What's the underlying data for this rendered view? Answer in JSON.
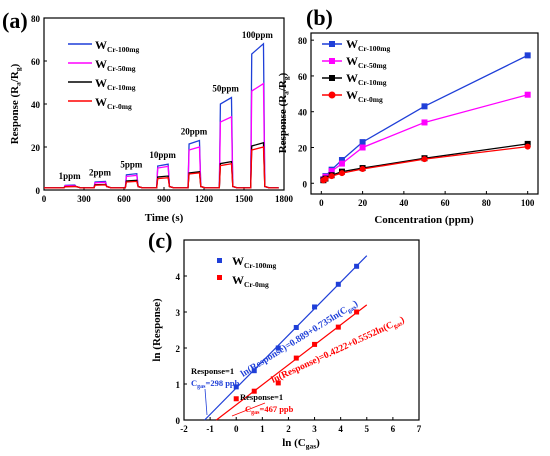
{
  "chart_data": [
    {
      "panel": "(a)",
      "type": "line",
      "xlabel": "Time (s)",
      "ylabel": "Response (R",
      "ylabel_sub1": "a",
      "ylabel_mid": "/R",
      "ylabel_sub2": "g",
      "ylabel_end": ")",
      "xlim": [
        0,
        1800
      ],
      "ylim": [
        0,
        80
      ],
      "xticks": [
        0,
        300,
        600,
        900,
        1200,
        1500,
        1800
      ],
      "yticks": [
        0,
        20,
        40,
        60,
        80
      ],
      "concentrations": [
        "1ppm",
        "2ppm",
        "5ppm",
        "10ppm",
        "20ppm",
        "50ppm",
        "100ppm"
      ],
      "pulses": [
        {
          "on": 150,
          "off": 235
        },
        {
          "on": 375,
          "off": 465
        },
        {
          "on": 610,
          "off": 700
        },
        {
          "on": 845,
          "off": 935
        },
        {
          "on": 1080,
          "off": 1170
        },
        {
          "on": 1315,
          "off": 1410
        },
        {
          "on": 1550,
          "off": 1650
        }
      ],
      "series": [
        {
          "name": "W",
          "sub": "Cr-100mg",
          "color": "#1f3fd8",
          "values": [
            2.3,
            4.0,
            7.6,
            12.0,
            23.0,
            43.0,
            68.0
          ]
        },
        {
          "name": "W",
          "sub": "Cr-50mg",
          "color": "#ff00ff",
          "values": [
            2.1,
            3.6,
            6.8,
            11.0,
            20.0,
            34.0,
            49.5
          ]
        },
        {
          "name": "W",
          "sub": "Cr-10mg",
          "color": "#000000",
          "values": [
            1.7,
            2.6,
            4.5,
            6.5,
            8.5,
            13.2,
            22.0
          ]
        },
        {
          "name": "W",
          "sub": "Cr-0mg",
          "color": "#ff0000",
          "values": [
            1.6,
            2.4,
            4.0,
            5.7,
            8.0,
            12.2,
            20.0
          ]
        }
      ]
    },
    {
      "panel": "(b)",
      "type": "line",
      "xlabel": "Concentration (ppm)",
      "ylabel": "Response (R",
      "ylabel_sub1": "a",
      "ylabel_mid": "/R",
      "ylabel_sub2": "g",
      "ylabel_end": ")",
      "xlim": [
        -5,
        105
      ],
      "ylim": [
        -6,
        84
      ],
      "xticks": [
        0,
        20,
        40,
        60,
        80,
        100
      ],
      "yticks": [
        0,
        20,
        40,
        60,
        80
      ],
      "x": [
        1,
        2,
        5,
        10,
        20,
        50,
        100
      ],
      "series": [
        {
          "name": "W",
          "sub": "Cr-100mg",
          "color": "#1f3fd8",
          "marker": "square",
          "values": [
            2.3,
            4.0,
            7.6,
            13.0,
            23.0,
            43.0,
            71.5
          ]
        },
        {
          "name": "W",
          "sub": "Cr-50mg",
          "color": "#ff00ff",
          "marker": "square",
          "values": [
            2.1,
            3.6,
            6.8,
            11.0,
            20.0,
            34.0,
            49.5
          ]
        },
        {
          "name": "W",
          "sub": "Cr-10mg",
          "color": "#000000",
          "marker": "square",
          "values": [
            1.7,
            2.6,
            4.5,
            6.5,
            8.5,
            14.0,
            22.0
          ]
        },
        {
          "name": "W",
          "sub": "Cr-0mg",
          "color": "#ff0000",
          "marker": "circle",
          "values": [
            1.6,
            2.4,
            4.0,
            5.7,
            8.0,
            13.5,
            20.5
          ]
        }
      ]
    },
    {
      "panel": "(c)",
      "type": "scatter",
      "xlabel": "ln (C",
      "xlabel_sub": "gas",
      "xlabel_end": ")",
      "ylabel": "ln (Response)",
      "xlim": [
        -2,
        7
      ],
      "ylim": [
        0,
        5
      ],
      "xticks": [
        -2,
        -1,
        0,
        1,
        2,
        3,
        4,
        5,
        6,
        7
      ],
      "yticks": [
        0,
        1,
        2,
        3,
        4
      ],
      "series": [
        {
          "name": "W",
          "sub": "Cr-100mg",
          "color": "#1f3fd8",
          "x": [
            0.0,
            0.69,
            1.61,
            2.3,
            3.0,
            3.91,
            4.61
          ],
          "y": [
            0.92,
            1.37,
            2.0,
            2.57,
            3.14,
            3.77,
            4.27
          ],
          "fit_x": [
            -1.21,
            5.0
          ]
        },
        {
          "name": "W",
          "sub": "Cr-0mg",
          "color": "#ff0000",
          "x": [
            0.0,
            0.69,
            1.61,
            2.3,
            3.0,
            3.91,
            4.61
          ],
          "y": [
            0.59,
            0.8,
            1.03,
            1.72,
            2.1,
            2.58,
            3.0
          ],
          "fit_x": [
            -0.76,
            5.0
          ]
        }
      ],
      "annotations": [
        {
          "text": "ln(Response)=0.889+0.735ln(C",
          "sub": "gas",
          "end": ")",
          "color": "#1f3fd8"
        },
        {
          "text": "ln(Response)=0.4222+0.5552ln(C",
          "sub": "gas",
          "end": ")",
          "color": "#ff0000"
        },
        {
          "line1": "Response=1",
          "line2_pre": "C",
          "line2_sub": "gas",
          "line2_post": "=298 ppb",
          "color": "#1f3fd8"
        },
        {
          "line1": "Response=1",
          "line2_pre": "C",
          "line2_sub": "gas",
          "line2_post": "=467 ppb",
          "color": "#ff0000"
        }
      ]
    }
  ]
}
